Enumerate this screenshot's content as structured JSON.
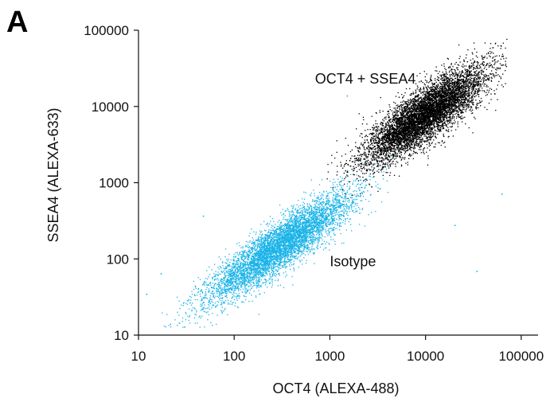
{
  "chart_data": {
    "type": "scatter",
    "panel_label": "A",
    "xlabel": "OCT4 (ALEXA-488)",
    "ylabel": "SSEA4 (ALEXA-633)",
    "x_scale": "log",
    "y_scale": "log",
    "xlim": [
      10,
      150000
    ],
    "ylim": [
      10,
      100000
    ],
    "x_ticks": [
      "10",
      "100",
      "1000",
      "10000",
      "100000"
    ],
    "y_ticks": [
      "10",
      "100",
      "1000",
      "10000",
      "100000"
    ],
    "grid": false,
    "annotations": [
      {
        "text": "OCT4 + SSEA4",
        "x": 700,
        "y": 20000
      },
      {
        "text": "Isotype",
        "x": 1000,
        "y": 80
      }
    ],
    "series": [
      {
        "color": "#000000",
        "distribution": {
          "kind": "bivariate-lognormal",
          "n": 7000,
          "center": {
            "x": 10000,
            "y": 8000
          },
          "major_axis_slope": 1.0,
          "spread_along_decades": 0.42,
          "spread_across_decades": 0.13,
          "x_range": [
            900,
            70000
          ],
          "y_range": [
            500,
            80000
          ]
        }
      },
      {
        "color": "#1ab3e8",
        "distribution": {
          "kind": "bivariate-lognormal",
          "n": 6000,
          "center": {
            "x": 300,
            "y": 150
          },
          "major_axis_slope": 0.93,
          "spread_along_decades": 0.5,
          "spread_across_decades": 0.12,
          "x_range": [
            15,
            6000
          ],
          "y_range": [
            12,
            3000
          ]
        }
      }
    ],
    "outliers": [
      {
        "x": 1500,
        "y": 14000,
        "color": "#1ab3e8"
      },
      {
        "x": 47,
        "y": 370,
        "color": "#1ab3e8"
      },
      {
        "x": 62000,
        "y": 720,
        "color": "#1ab3e8"
      },
      {
        "x": 34000,
        "y": 70,
        "color": "#1ab3e8"
      },
      {
        "x": 12,
        "y": 35,
        "color": "#1ab3e8"
      },
      {
        "x": 17,
        "y": 65,
        "color": "#1ab3e8"
      },
      {
        "x": 30,
        "y": 13,
        "color": "#1ab3e8"
      },
      {
        "x": 20000,
        "y": 280,
        "color": "#1ab3e8"
      },
      {
        "x": 50000,
        "y": 60000,
        "color": "#000000"
      }
    ]
  }
}
